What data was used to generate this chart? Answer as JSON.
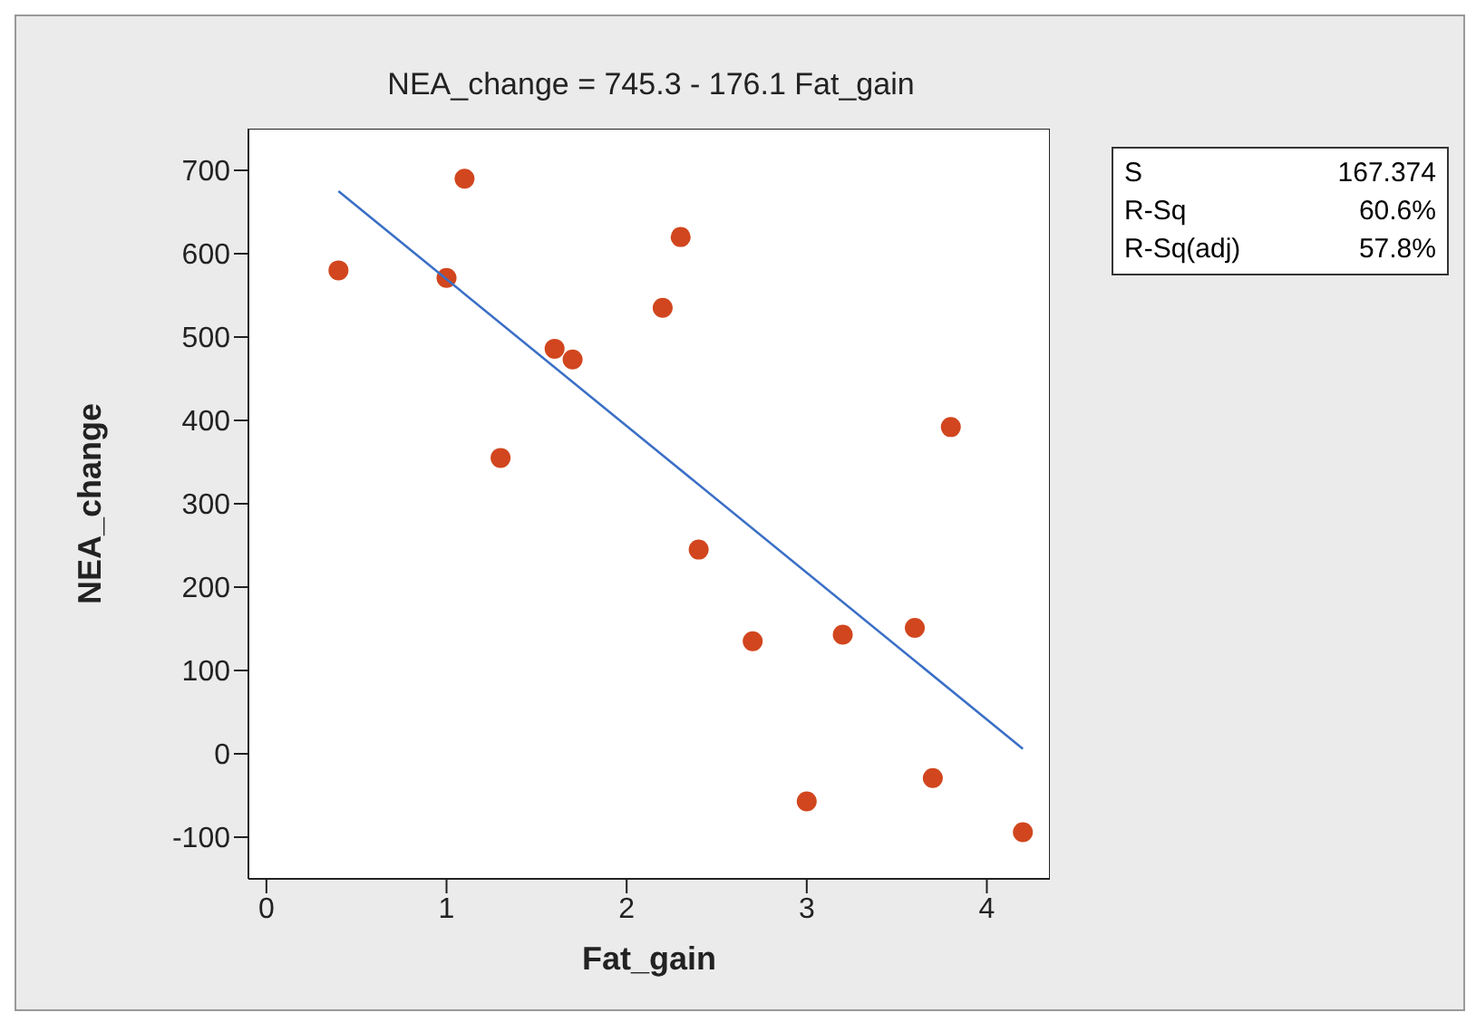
{
  "chart_data": {
    "type": "scatter",
    "title": "NEA_change =  745.3 - 176.1 Fat_gain",
    "xlabel": "Fat_gain",
    "ylabel": "NEA_change",
    "xlim": [
      -0.1,
      4.35
    ],
    "xticks": [
      0,
      1,
      2,
      3,
      4
    ],
    "ylim": [
      -150,
      750
    ],
    "yticks": [
      -100,
      0,
      100,
      200,
      300,
      400,
      500,
      600,
      700
    ],
    "grid": false,
    "legend": false,
    "series": [
      {
        "marker": "circle",
        "color": "#d1461e",
        "x": [
          4.2,
          3.0,
          3.7,
          2.7,
          3.2,
          3.6,
          2.4,
          1.3,
          3.8,
          1.7,
          1.6,
          2.2,
          1.0,
          0.4,
          2.3,
          1.1
        ],
        "values": [
          -94,
          -57,
          -29,
          135,
          143,
          151,
          245,
          355,
          392,
          473,
          486,
          535,
          571,
          580,
          620,
          690
        ]
      },
      {
        "type": "line",
        "marker": "none",
        "color": "#3a6fc6",
        "x": [
          0.4,
          4.2
        ],
        "values": [
          675,
          6
        ]
      }
    ],
    "annotations": [
      "S",
      "167.374",
      "R-Sq",
      "60.6%",
      "R-Sq(adj)",
      "57.8%"
    ]
  }
}
